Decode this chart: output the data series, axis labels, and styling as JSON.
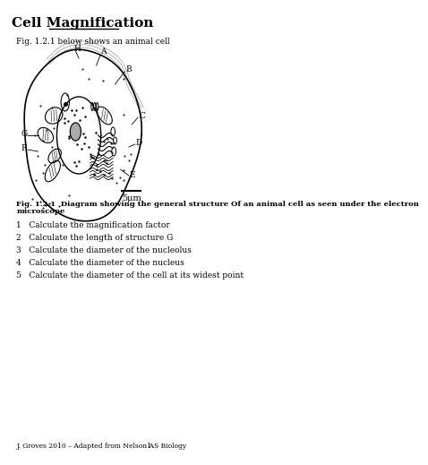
{
  "title": "Cell Magnification",
  "subtitle": "Fig. 1.2.1 below shows an animal cell",
  "caption_line1": "Fig. 1.2.1  Diagram showing the general structure Of an animal cell as seen under the electron",
  "caption_line2": "microscope",
  "scale_label": "5μm",
  "questions": [
    "1   Calculate the magnification factor",
    "2   Calculate the length of structure G",
    "3   Calculate the diameter of the nucleolus",
    "4   Calculate the diameter of the nucleus",
    "5   Calculate the diameter of the cell at its widest point"
  ],
  "footer": "J. Groves 2010 – Adapted from Nelson AS Biology",
  "page_num": "1",
  "bg_color": "#ffffff",
  "text_color": "#000000"
}
